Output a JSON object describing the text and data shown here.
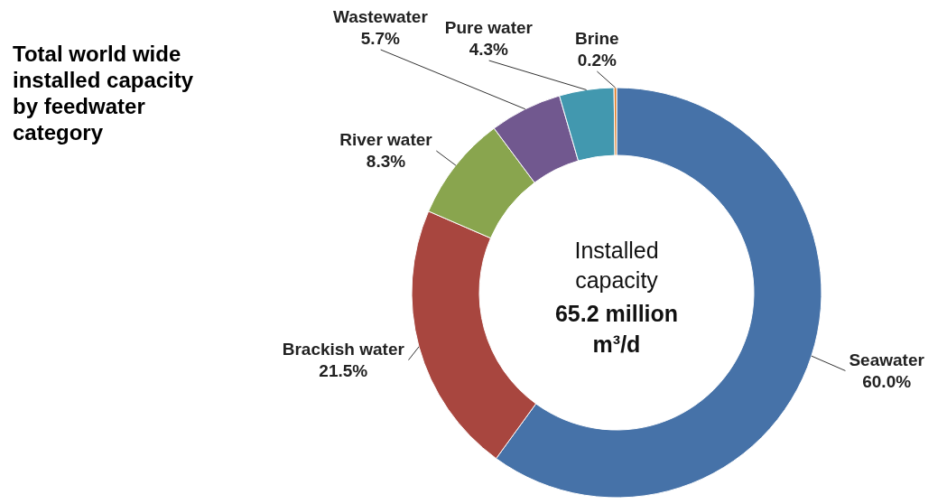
{
  "chart_data": {
    "type": "donut",
    "title": "Total world wide installed capacity by feedwater category",
    "categories": [
      "Seawater",
      "Brackish water",
      "River water",
      "Wastewater",
      "Pure water",
      "Brine"
    ],
    "values": [
      60.0,
      21.5,
      8.3,
      5.7,
      4.3,
      0.2
    ],
    "value_labels": [
      "60.0%",
      "21.5%",
      "8.3%",
      "5.7%",
      "4.3%",
      "0.2%"
    ],
    "colors": [
      "#4672a8",
      "#a8463f",
      "#89a54e",
      "#71588f",
      "#4298af",
      "#e0791f"
    ],
    "annotations": [
      "Installed capacity",
      "65.2 million m³/d"
    ]
  }
}
